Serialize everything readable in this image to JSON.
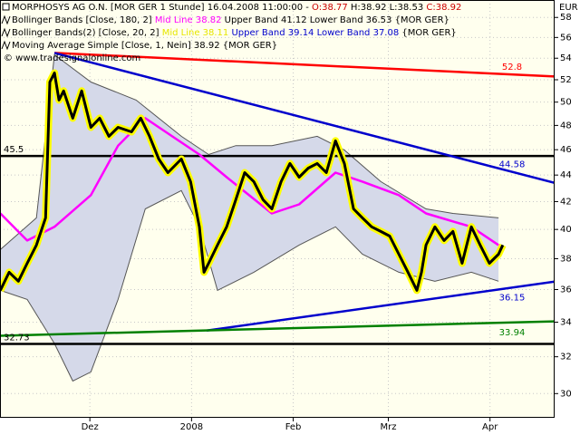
{
  "header": {
    "lines": [
      [
        {
          "text": "MORPHOSYS AG O.N. [MOR GER  1 Stunde] 16.04.2008 11:00:00 - ",
          "color": "#000000"
        },
        {
          "text": "O:38.77",
          "color": "#cc0000"
        },
        {
          "text": " H:38.92 L:38.53 ",
          "color": "#000000"
        },
        {
          "text": "C:38.92",
          "color": "#cc0000"
        }
      ],
      [
        {
          "text": "Bollinger Bands [Close, 180, 2] ",
          "color": "#000000"
        },
        {
          "text": "Mid Line 38.82",
          "color": "#ff00ff"
        },
        {
          "text": " Upper Band 41.12 Lower Band 36.53 {MOR GER}",
          "color": "#000000"
        }
      ],
      [
        {
          "text": "Bollinger Bands(2) [Close, 20, 2] ",
          "color": "#000000"
        },
        {
          "text": "Mid Line 38.11",
          "color": "#e6e600"
        },
        {
          "text": " Upper Band 39.14 Lower Band 37.08",
          "color": "#0000cc"
        },
        {
          "text": " {MOR GER}",
          "color": "#000000"
        }
      ],
      [
        {
          "text": "Moving Average Simple [Close, 1, Nein] 38.92 {MOR GER}",
          "color": "#000000"
        }
      ],
      [
        {
          "text": "© www.tradesignalonline.com",
          "color": "#000000"
        }
      ]
    ]
  },
  "chart_data": {
    "type": "line",
    "y_unit": "EUR",
    "log_y": true,
    "grid": true,
    "background": "#ffffee",
    "xlim": [
      2.6,
      171.7
    ],
    "xticks": [
      {
        "value": 30,
        "label": "Dez"
      },
      {
        "value": 61,
        "label": "2008"
      },
      {
        "value": 92,
        "label": "Feb"
      },
      {
        "value": 121,
        "label": "Mrz"
      },
      {
        "value": 152,
        "label": "Apr"
      }
    ],
    "ylim": [
      28.8,
      59.8
    ],
    "yticks": [
      30,
      32,
      34,
      36,
      38,
      40,
      42,
      44,
      46,
      48,
      50,
      52,
      54,
      56,
      58
    ],
    "band": {
      "fill": "#d5d9e9",
      "edge": "#555555",
      "upper": {
        "x": [
          2.7,
          13.7,
          19.2,
          30.3,
          44.1,
          57.9,
          66.2,
          74.5,
          85.5,
          99.3,
          107.6,
          118.7,
          132.5,
          140.7,
          154.6
        ],
        "values": [
          38.61,
          40.82,
          54.33,
          51.79,
          50.18,
          47.09,
          45.61,
          46.33,
          46.33,
          47.09,
          45.97,
          43.5,
          41.47,
          41.14,
          40.82
        ]
      },
      "lower": {
        "x": [
          2.7,
          10.9,
          19.2,
          24.8,
          30.3,
          38.6,
          46.9,
          57.9,
          63.4,
          68.9,
          80.0,
          93.8,
          104.9,
          113.1,
          124.2,
          135.2,
          146.3,
          154.6
        ],
        "values": [
          35.95,
          35.38,
          32.75,
          30.67,
          31.16,
          35.38,
          41.47,
          42.82,
          40.18,
          35.95,
          37.11,
          38.92,
          40.18,
          38.3,
          37.11,
          36.53,
          37.11,
          36.53
        ]
      }
    },
    "series": [
      {
        "color": "#ff00ff",
        "width": 2.5,
        "x": [
          2.7,
          10.9,
          19.2,
          30.3,
          38.6,
          46.9,
          55.1,
          63.4,
          71.7,
          85.5,
          93.8,
          104.9,
          113.1,
          124.2,
          132.5,
          146.3,
          154.6
        ],
        "values": [
          41.14,
          39.23,
          40.18,
          42.48,
          46.33,
          48.61,
          47.09,
          45.61,
          43.84,
          41.14,
          41.8,
          44.19,
          43.5,
          42.48,
          41.14,
          40.18,
          38.92
        ]
      },
      {
        "color": "#000000",
        "highlight": "#ffff00",
        "width": 3,
        "x": [
          2.7,
          5.4,
          8.2,
          10.9,
          13.7,
          16.5,
          17.8,
          19.2,
          20.6,
          22.0,
          24.8,
          27.5,
          30.3,
          33.0,
          35.8,
          38.6,
          42.7,
          45.5,
          48.2,
          51.0,
          53.8,
          57.9,
          60.7,
          63.4,
          64.8,
          66.2,
          68.9,
          71.7,
          74.5,
          77.2,
          80.0,
          82.8,
          85.5,
          88.3,
          91.0,
          93.8,
          96.6,
          99.3,
          102.1,
          104.9,
          107.6,
          110.4,
          113.1,
          115.9,
          118.7,
          121.4,
          124.2,
          127.0,
          129.7,
          131.1,
          132.5,
          135.2,
          138.0,
          140.7,
          143.5,
          146.3,
          149.0,
          151.8,
          154.6,
          155.9
        ],
        "values": [
          35.95,
          37.11,
          36.53,
          37.7,
          38.92,
          40.82,
          51.79,
          52.62,
          50.18,
          50.99,
          48.61,
          50.99,
          47.84,
          48.61,
          47.09,
          47.84,
          47.46,
          48.61,
          47.09,
          45.25,
          44.19,
          45.25,
          43.5,
          40.18,
          37.11,
          37.7,
          38.92,
          40.18,
          42.14,
          44.19,
          43.5,
          42.14,
          41.47,
          43.5,
          44.9,
          43.84,
          44.54,
          44.9,
          44.19,
          46.72,
          44.9,
          41.47,
          40.82,
          40.18,
          39.86,
          39.54,
          38.3,
          37.11,
          35.95,
          37.11,
          38.92,
          40.18,
          39.23,
          39.86,
          37.7,
          40.18,
          38.92,
          37.7,
          38.3,
          38.92
        ]
      }
    ],
    "hlines": [
      {
        "value": 45.5,
        "color": "#000000"
      },
      {
        "value": 32.73,
        "color": "#000000"
      }
    ],
    "trendlines": [
      {
        "x": [
          19.2,
          171.7
        ],
        "values": [
          54.5,
          52.3
        ],
        "color": "#ff0000",
        "label": 52.8
      },
      {
        "x": [
          19.2,
          171.7
        ],
        "values": [
          54.5,
          43.4
        ],
        "color": "#0000cc",
        "label": 44.58
      },
      {
        "x": [
          65.6,
          171.7
        ],
        "values": [
          33.5,
          36.5
        ],
        "color": "#0000cc",
        "label": 36.15
      },
      {
        "x": [
          2.7,
          171.7
        ],
        "values": [
          33.2,
          34.05
        ],
        "color": "#008000",
        "label": 33.94
      }
    ]
  }
}
